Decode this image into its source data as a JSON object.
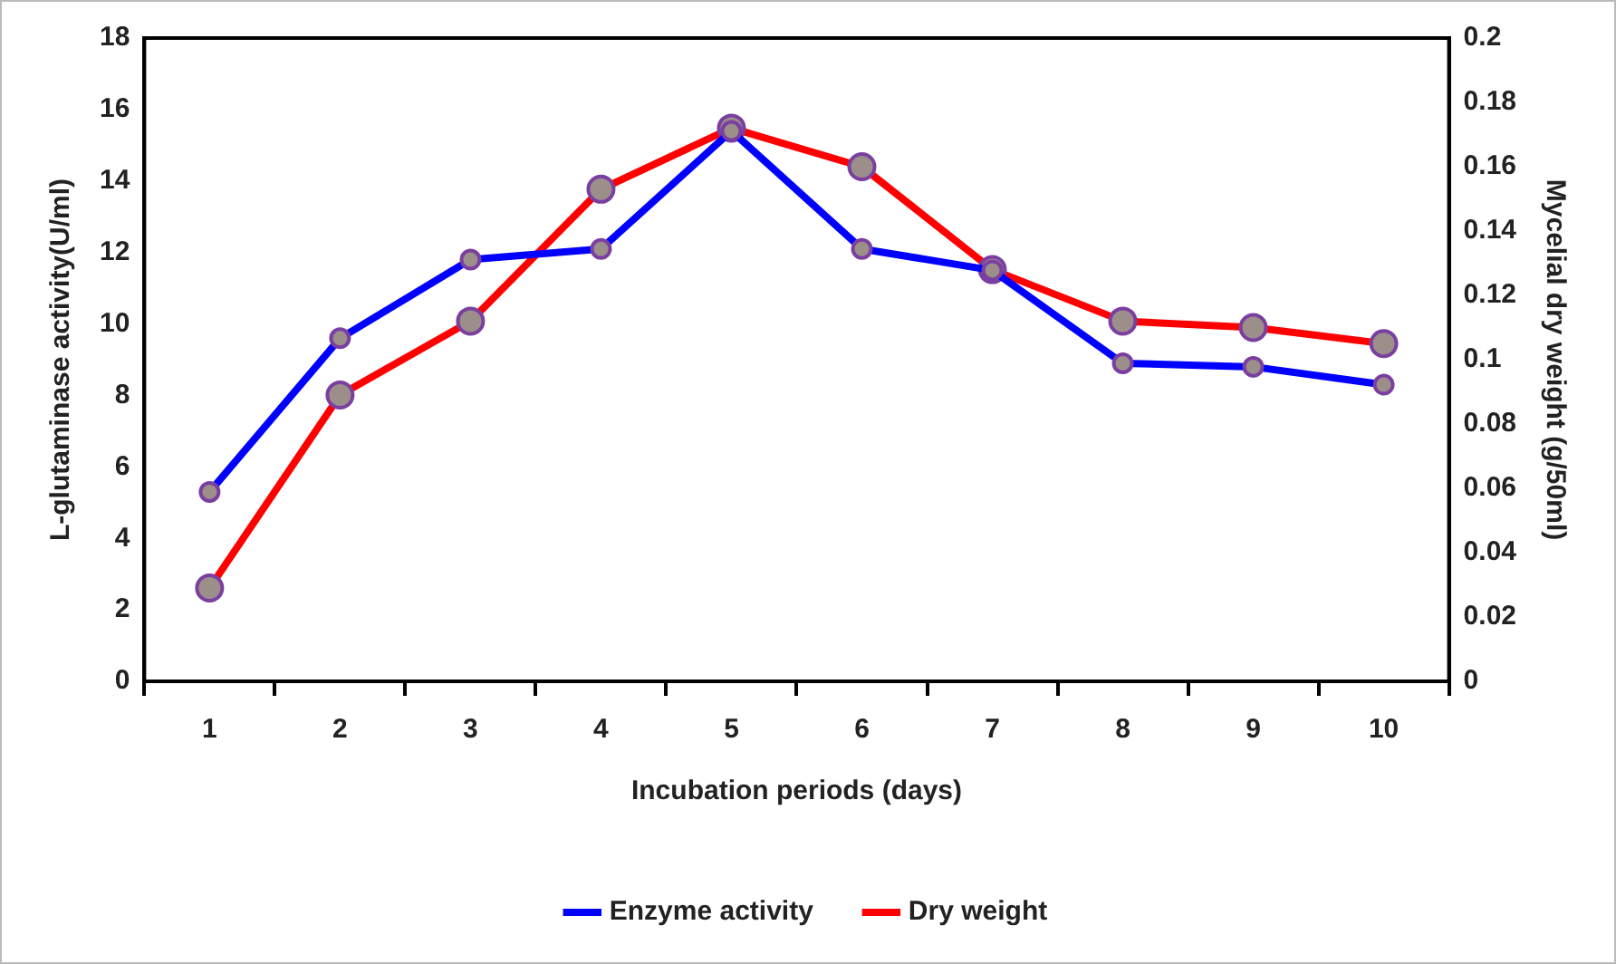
{
  "chart_data": {
    "type": "line",
    "xlabel": "Incubation periods (days)",
    "ylabel": "L-glutaminase activity(U/ml)",
    "y2label": "Mycelial dry weight (g/50ml)",
    "categories": [
      "1",
      "2",
      "3",
      "4",
      "5",
      "6",
      "7",
      "8",
      "9",
      "10"
    ],
    "series": [
      {
        "name": "Enzyme activity",
        "color": "#0000ff",
        "values": [
          5.3,
          9.6,
          11.8,
          12.1,
          15.4,
          12.1,
          11.5,
          8.9,
          8.8,
          8.3
        ]
      },
      {
        "name": "Dry weight",
        "color": "#ff0000",
        "axis": "y2",
        "values": [
          0.029,
          0.089,
          0.112,
          0.153,
          0.172,
          0.16,
          0.128,
          0.112,
          0.11,
          0.105
        ]
      }
    ],
    "ylim": [
      0,
      18
    ],
    "yticks": [
      0,
      2,
      4,
      6,
      8,
      10,
      12,
      14,
      16,
      18
    ],
    "y2lim": [
      0,
      0.2
    ],
    "y2ticks": [
      0,
      0.02,
      0.04,
      0.06,
      0.08,
      0.1,
      0.12,
      0.14,
      0.16,
      0.18,
      0.2
    ],
    "grid": false,
    "legend": "bottom",
    "marker": "circle",
    "line_style": "solid"
  }
}
